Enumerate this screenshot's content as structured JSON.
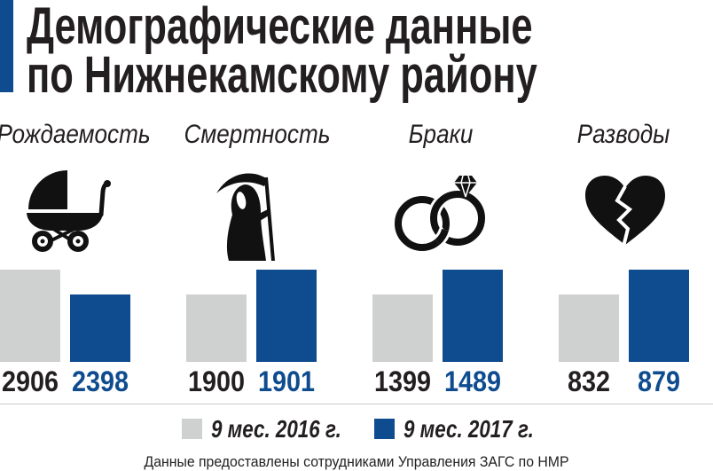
{
  "title": {
    "line1": "Демографические данные",
    "line2": "по Нижнекамскому району"
  },
  "colors": {
    "accent": "#0f4c8f",
    "gray": "#cfd0d0",
    "text": "#231f20"
  },
  "chart_data": {
    "type": "bar",
    "categories": [
      "Рождаемость",
      "Смертность",
      "Браки",
      "Разводы"
    ],
    "category_icons": [
      "baby-stroller-icon",
      "grim-reaper-icon",
      "wedding-rings-icon",
      "broken-heart-icon"
    ],
    "series": [
      {
        "name": "9 мес. 2016 г.",
        "values": [
          2906,
          1900,
          1399,
          832
        ],
        "color": "#cfd0d0"
      },
      {
        "name": "9 мес. 2017 г.",
        "values": [
          2398,
          1901,
          1489,
          879
        ],
        "color": "#0f4c8f"
      }
    ],
    "value_labels": true,
    "legend_position": "bottom",
    "grid": false
  },
  "footer": "Данные предоставлены сотрудниками Управления ЗАГС по НМР"
}
